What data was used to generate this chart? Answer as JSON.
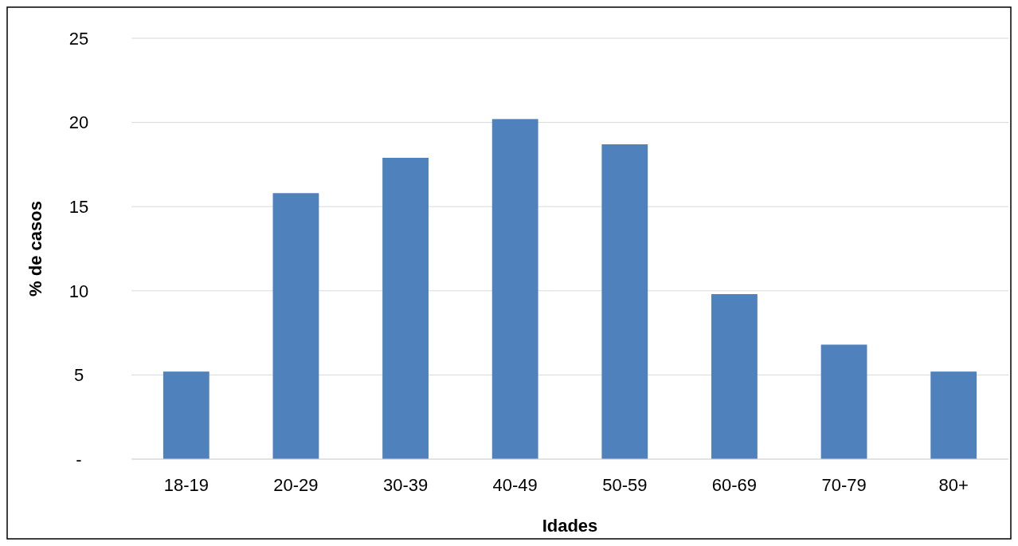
{
  "chart_data": {
    "type": "bar",
    "xlabel": "Idades",
    "ylabel": "% de casos",
    "categories": [
      "18-19",
      "20-29",
      "30-39",
      "40-49",
      "50-59",
      "60-69",
      "70-79",
      "80+"
    ],
    "values": [
      5.2,
      15.8,
      17.9,
      20.2,
      18.7,
      9.8,
      6.8,
      5.2
    ],
    "color": "#4f81bd",
    "ylim": [
      0,
      25
    ],
    "yticks": [
      {
        "value": 0,
        "label": "-"
      },
      5,
      10,
      15,
      20,
      25
    ],
    "grid": "y"
  }
}
